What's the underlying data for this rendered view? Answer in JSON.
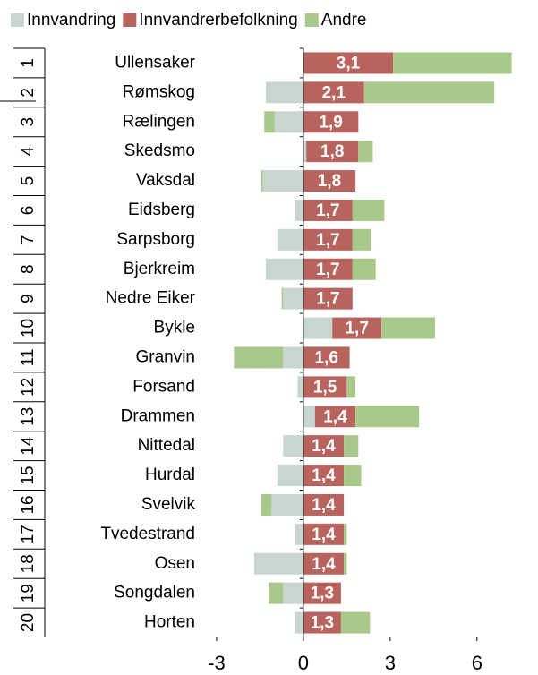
{
  "chart_data": {
    "type": "stacked-barh",
    "ranks": [
      1,
      2,
      3,
      4,
      5,
      6,
      7,
      8,
      9,
      10,
      11,
      12,
      13,
      14,
      15,
      16,
      17,
      18,
      19,
      20
    ],
    "categories": [
      "Ullensaker",
      "Rømskog",
      "Rælingen",
      "Skedsmo",
      "Vaksdal",
      "Eidsberg",
      "Sarpsborg",
      "Bjerkreim",
      "Nedre Eiker",
      "Bykle",
      "Granvin",
      "Forsand",
      "Drammen",
      "Nittedal",
      "Hurdal",
      "Svelvik",
      "Tvedestrand",
      "Osen",
      "Songdalen",
      "Horten"
    ],
    "series": [
      {
        "name": "Innvandring",
        "color": "#c9d5d1",
        "values": [
          0,
          -1.3,
          -1.0,
          0.1,
          -1.4,
          -0.3,
          -0.9,
          -1.3,
          -0.7,
          1.0,
          -0.7,
          -0.2,
          0.4,
          -0.7,
          -0.9,
          -1.1,
          -0.3,
          -1.7,
          -0.7,
          -0.3
        ]
      },
      {
        "name": "Innvandrerbefolkning",
        "color": "#b8645e",
        "values": [
          3.1,
          2.1,
          1.9,
          1.8,
          1.8,
          1.7,
          1.7,
          1.7,
          1.7,
          1.7,
          1.6,
          1.5,
          1.4,
          1.4,
          1.4,
          1.4,
          1.4,
          1.4,
          1.3,
          1.3
        ],
        "value_labels": [
          "3,1",
          "2,1",
          "1,9",
          "1,8",
          "1,8",
          "1,7",
          "1,7",
          "1,7",
          "1,7",
          "1,7",
          "1,6",
          "1,5",
          "1,4",
          "1,4",
          "1,4",
          "1,4",
          "1,4",
          "1,4",
          "1,3",
          "1,3"
        ]
      },
      {
        "name": "Andre",
        "color": "#a9c98a",
        "values": [
          4.1,
          4.5,
          -0.35,
          0.5,
          -0.05,
          1.1,
          0.65,
          0.8,
          -0.05,
          1.85,
          -1.7,
          0.3,
          2.2,
          0.5,
          0.6,
          -0.35,
          0.1,
          0.1,
          -0.5,
          1.0
        ]
      }
    ],
    "label_series": 1,
    "xlim": [
      -3.4,
      7.8
    ],
    "xticks": [
      -3,
      0,
      3,
      6
    ]
  }
}
